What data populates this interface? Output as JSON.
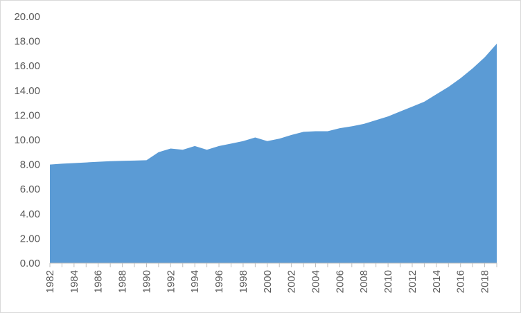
{
  "chart_data": {
    "type": "area",
    "title": "",
    "xlabel": "",
    "ylabel": "",
    "ylim": [
      0,
      20
    ],
    "yticks": [
      "0.00",
      "2.00",
      "4.00",
      "6.00",
      "8.00",
      "10.00",
      "12.00",
      "14.00",
      "16.00",
      "18.00",
      "20.00"
    ],
    "xticks": [
      "1982",
      "1984",
      "1986",
      "1988",
      "1990",
      "1992",
      "1994",
      "1996",
      "1998",
      "2000",
      "2002",
      "2004",
      "2006",
      "2008",
      "2010",
      "2012",
      "2014",
      "2016",
      "2018"
    ],
    "grid": false,
    "legend": "none",
    "fill_color": "#5b9bd5",
    "axis_color": "#bfbfbf",
    "x": [
      1982,
      1983,
      1984,
      1985,
      1986,
      1987,
      1988,
      1989,
      1990,
      1991,
      1992,
      1993,
      1994,
      1995,
      1996,
      1997,
      1998,
      1999,
      2000,
      2001,
      2002,
      2003,
      2004,
      2005,
      2006,
      2007,
      2008,
      2009,
      2010,
      2011,
      2012,
      2013,
      2014,
      2015,
      2016,
      2017,
      2018,
      2019
    ],
    "values": [
      8.0,
      8.07,
      8.12,
      8.17,
      8.22,
      8.27,
      8.3,
      8.32,
      8.35,
      9.0,
      9.3,
      9.2,
      9.5,
      9.2,
      9.5,
      9.7,
      9.9,
      10.2,
      9.9,
      10.1,
      10.4,
      10.65,
      10.7,
      10.7,
      10.95,
      11.1,
      11.3,
      11.6,
      11.9,
      12.3,
      12.7,
      13.1,
      13.7,
      14.3,
      15.0,
      15.8,
      16.7,
      17.8
    ]
  }
}
